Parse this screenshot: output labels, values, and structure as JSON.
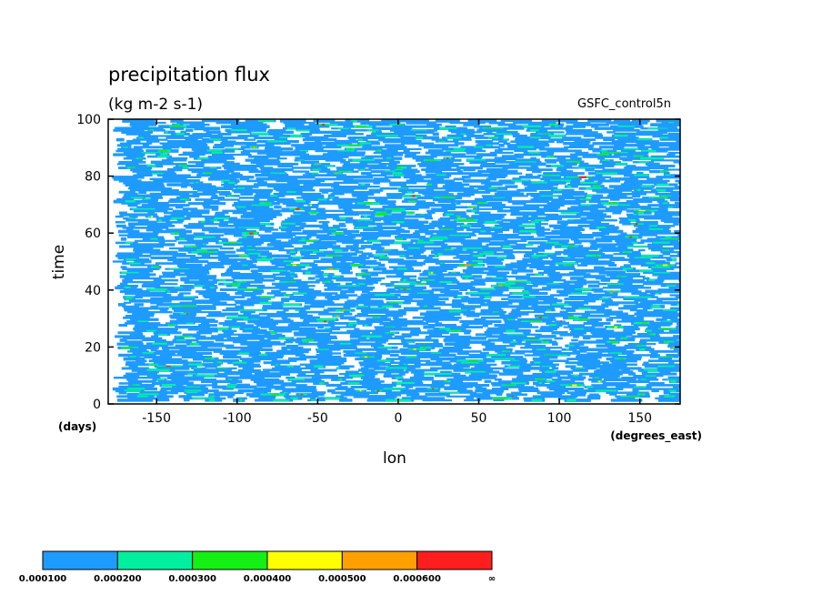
{
  "chart_data": {
    "type": "heatmap",
    "title": "precipitation flux",
    "subtitle": "(kg m-2 s-1)",
    "annotation": "GSFC_control5n",
    "xlabel": "lon",
    "xunits": "(degrees_east)",
    "ylabel": "time",
    "yunits": "(days)",
    "xlim": [
      -180,
      175
    ],
    "ylim": [
      0,
      100
    ],
    "xticks": [
      -150,
      -100,
      -50,
      0,
      50,
      100,
      150
    ],
    "yticks": [
      0,
      20,
      40,
      60,
      80,
      100
    ],
    "grid": false,
    "pattern": "banded zonally elongated streaks of light precipitation (mostly 0.0001-0.0002) across all longitudes and days, with scattered higher-intensity cores",
    "colorbar": {
      "levels": [
        "0.000100",
        "0.000200",
        "0.000300",
        "0.000400",
        "0.000500",
        "0.000600",
        "∞"
      ],
      "colors": [
        "#1e9bff",
        "#00f0a0",
        "#14f014",
        "#ffff00",
        "#ffa000",
        "#ff1e1e"
      ]
    }
  }
}
